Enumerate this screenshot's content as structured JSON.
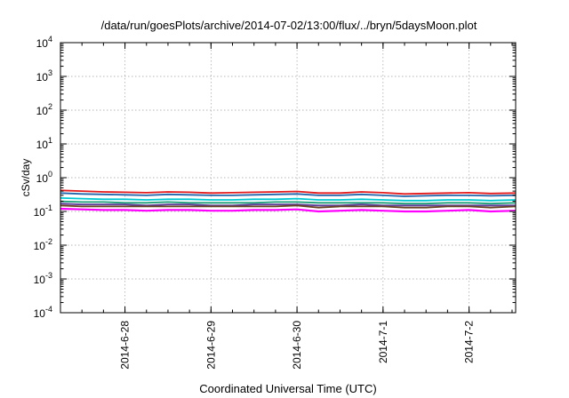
{
  "chart_data": {
    "type": "line",
    "title": "/data/run/goesPlots/archive/2014-07-02/13:00/flux/../bryn/5daysMoon.plot",
    "xlabel": "Coordinated Universal Time (UTC)",
    "ylabel": "cSv/day",
    "y_scale": "log",
    "ylim": [
      0.0001,
      10000
    ],
    "y_ticks": [
      {
        "value": 0.0001,
        "base": "10",
        "exp": "-4"
      },
      {
        "value": 0.001,
        "base": "10",
        "exp": "-3"
      },
      {
        "value": 0.01,
        "base": "10",
        "exp": "-2"
      },
      {
        "value": 0.1,
        "base": "10",
        "exp": "-1"
      },
      {
        "value": 1,
        "base": "10",
        "exp": "0"
      },
      {
        "value": 10,
        "base": "10",
        "exp": "1"
      },
      {
        "value": 100,
        "base": "10",
        "exp": "2"
      },
      {
        "value": 1000,
        "base": "10",
        "exp": "3"
      },
      {
        "value": 10000,
        "base": "10",
        "exp": "4"
      }
    ],
    "x_unit": "days",
    "xlim": [
      "2014-06-27 06:00",
      "2014-07-02 13:00"
    ],
    "x_ticks": [
      {
        "value": "2014-06-28",
        "label": "2014-6-28"
      },
      {
        "value": "2014-06-29",
        "label": "2014-6-29"
      },
      {
        "value": "2014-06-30",
        "label": "2014-6-30"
      },
      {
        "value": "2014-07-01",
        "label": "2014-7-1"
      },
      {
        "value": "2014-07-02",
        "label": "2014-7-2"
      }
    ],
    "grid": true,
    "x_values": [
      "2014-06-27 06:00",
      "2014-06-27 12:00",
      "2014-06-27 18:00",
      "2014-06-28 00:00",
      "2014-06-28 06:00",
      "2014-06-28 12:00",
      "2014-06-28 18:00",
      "2014-06-29 00:00",
      "2014-06-29 06:00",
      "2014-06-29 12:00",
      "2014-06-29 18:00",
      "2014-06-30 00:00",
      "2014-06-30 06:00",
      "2014-06-30 12:00",
      "2014-06-30 18:00",
      "2014-07-01 00:00",
      "2014-07-01 06:00",
      "2014-07-01 12:00",
      "2014-07-01 18:00",
      "2014-07-02 00:00",
      "2014-07-02 06:00",
      "2014-07-02 13:00"
    ],
    "series": [
      {
        "color": "#e41a1c",
        "values": [
          0.42,
          0.4,
          0.38,
          0.37,
          0.36,
          0.38,
          0.37,
          0.35,
          0.36,
          0.37,
          0.38,
          0.39,
          0.35,
          0.35,
          0.38,
          0.36,
          0.33,
          0.34,
          0.35,
          0.36,
          0.34,
          0.35
        ]
      },
      {
        "color": "#2166ac",
        "values": [
          0.35,
          0.33,
          0.32,
          0.31,
          0.3,
          0.32,
          0.31,
          0.3,
          0.3,
          0.31,
          0.32,
          0.33,
          0.3,
          0.3,
          0.32,
          0.3,
          0.28,
          0.29,
          0.3,
          0.3,
          0.29,
          0.3
        ]
      },
      {
        "color": "#00c8d2",
        "values": [
          0.25,
          0.24,
          0.23,
          0.23,
          0.22,
          0.23,
          0.23,
          0.22,
          0.22,
          0.23,
          0.23,
          0.24,
          0.22,
          0.22,
          0.23,
          0.22,
          0.21,
          0.21,
          0.22,
          0.22,
          0.21,
          0.22
        ]
      },
      {
        "color": "#1b9e77",
        "values": [
          0.2,
          0.19,
          0.19,
          0.18,
          0.18,
          0.19,
          0.18,
          0.18,
          0.18,
          0.18,
          0.19,
          0.19,
          0.18,
          0.18,
          0.18,
          0.18,
          0.17,
          0.17,
          0.18,
          0.18,
          0.17,
          0.18
        ]
      },
      {
        "color": "#5e3c99",
        "values": [
          0.17,
          0.16,
          0.16,
          0.16,
          0.15,
          0.16,
          0.16,
          0.15,
          0.15,
          0.16,
          0.16,
          0.16,
          0.15,
          0.15,
          0.16,
          0.15,
          0.15,
          0.15,
          0.15,
          0.15,
          0.15,
          0.15
        ]
      },
      {
        "color": "#6b4226",
        "values": [
          0.15,
          0.14,
          0.14,
          0.14,
          0.14,
          0.14,
          0.14,
          0.14,
          0.14,
          0.14,
          0.14,
          0.15,
          0.13,
          0.14,
          0.14,
          0.14,
          0.13,
          0.13,
          0.14,
          0.14,
          0.13,
          0.14
        ]
      },
      {
        "color": "#ff00ff",
        "values": [
          0.12,
          0.115,
          0.11,
          0.11,
          0.105,
          0.11,
          0.11,
          0.105,
          0.105,
          0.11,
          0.11,
          0.115,
          0.1,
          0.105,
          0.11,
          0.105,
          0.1,
          0.1,
          0.105,
          0.11,
          0.1,
          0.105
        ]
      }
    ]
  }
}
